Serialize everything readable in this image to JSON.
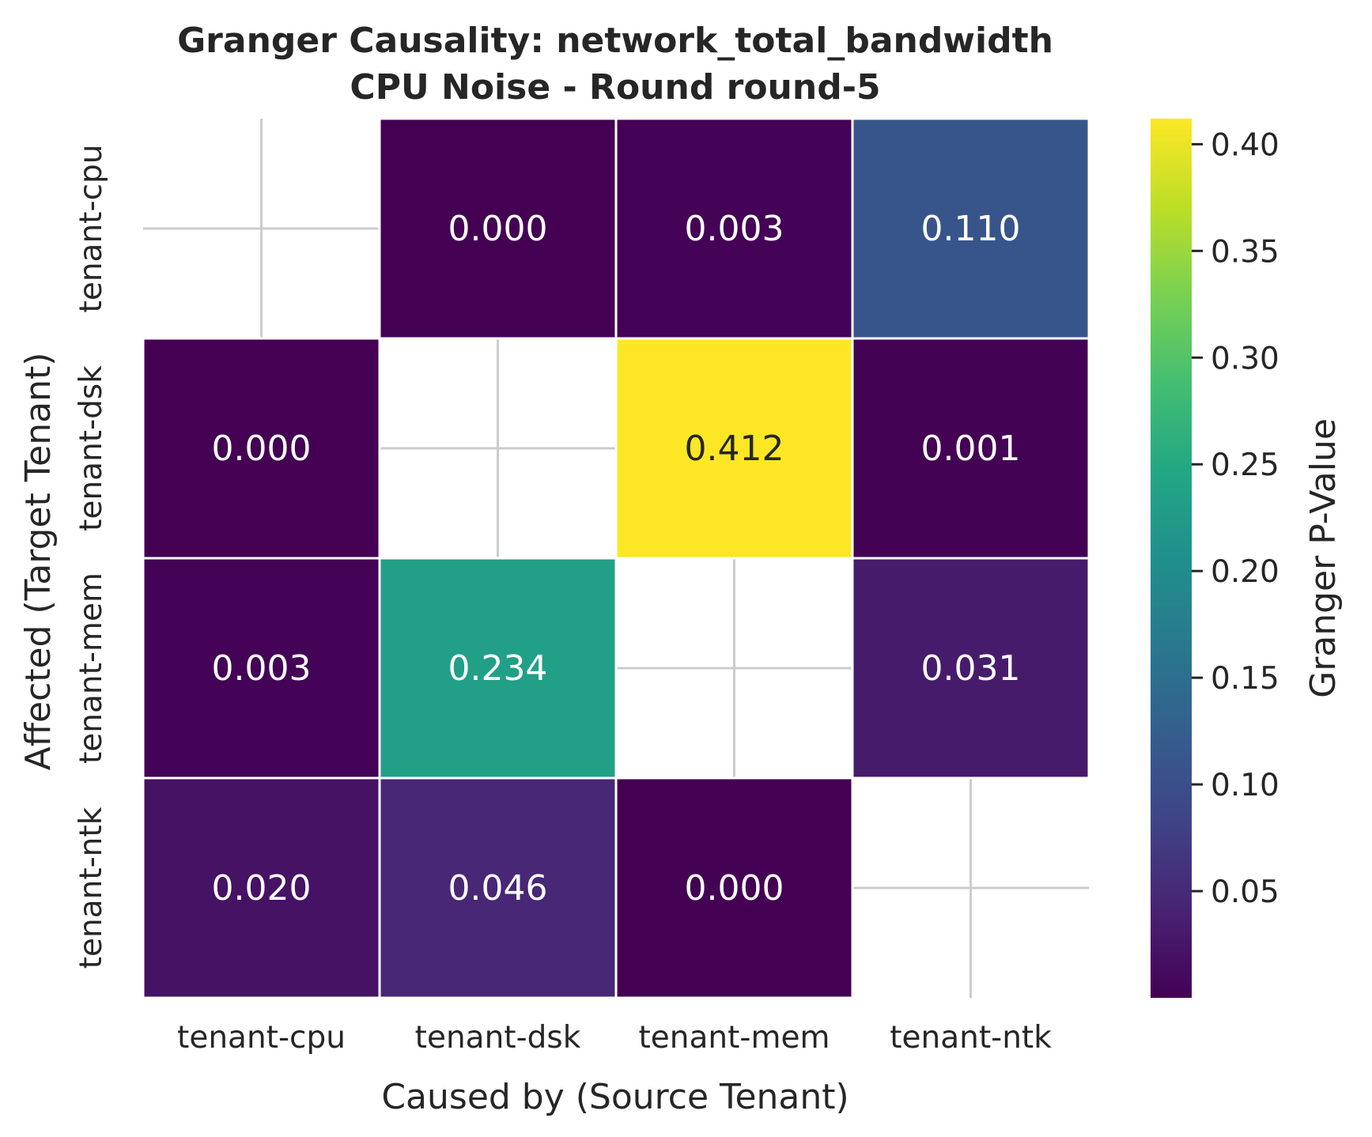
{
  "chart_data": {
    "type": "heatmap",
    "title": "Granger Causality: network_total_bandwidth",
    "subtitle": "CPU Noise - Round round-5",
    "xlabel": "Caused by (Source Tenant)",
    "ylabel": "Affected (Target Tenant)",
    "x_categories": [
      "tenant-cpu",
      "tenant-dsk",
      "tenant-mem",
      "tenant-ntk"
    ],
    "y_categories": [
      "tenant-cpu",
      "tenant-dsk",
      "tenant-mem",
      "tenant-ntk"
    ],
    "values": [
      [
        null,
        0.0,
        0.003,
        0.11
      ],
      [
        0.0,
        null,
        0.412,
        0.001
      ],
      [
        0.003,
        0.234,
        null,
        0.031
      ],
      [
        0.02,
        0.046,
        0.0,
        null
      ]
    ],
    "value_labels": [
      [
        "",
        "0.000",
        "0.003",
        "0.110"
      ],
      [
        "0.000",
        "",
        "0.412",
        "0.001"
      ],
      [
        "0.003",
        "0.234",
        "",
        "0.031"
      ],
      [
        "0.020",
        "0.046",
        "0.000",
        ""
      ]
    ],
    "colormap": "viridis",
    "colorbar": {
      "label": "Granger P-Value",
      "range": [
        0.0,
        0.412
      ],
      "ticks": [
        0.05,
        0.1,
        0.15,
        0.2,
        0.25,
        0.3,
        0.35,
        0.4
      ],
      "tick_labels": [
        "0.05",
        "0.10",
        "0.15",
        "0.20",
        "0.25",
        "0.30",
        "0.35",
        "0.40"
      ]
    },
    "grid": true
  }
}
